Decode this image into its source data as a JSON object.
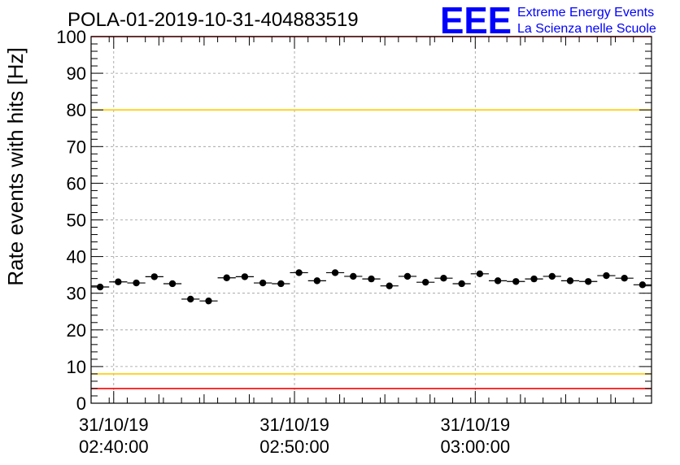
{
  "chart_data": {
    "type": "scatter",
    "title": "POLA-01-2019-10-31-404883519",
    "ylabel": "Rate events with hits [Hz]",
    "xlabel": "",
    "ylim": [
      0,
      100
    ],
    "y_ticks": [
      "0",
      "10",
      "20",
      "30",
      "40",
      "50",
      "60",
      "70",
      "80",
      "90",
      "100"
    ],
    "x_ticks": [
      {
        "minute": 1.25,
        "date": "31/10/19",
        "time": "02:40:00"
      },
      {
        "minute": 11.25,
        "date": "31/10/19",
        "time": "02:50:00"
      },
      {
        "minute": 21.25,
        "date": "31/10/19",
        "time": "03:00:00"
      }
    ],
    "x_range_minutes": [
      0,
      31
    ],
    "grid": true,
    "reference_lines": [
      {
        "y": 100,
        "color": "#ff0000"
      },
      {
        "y": 80,
        "color": "#ffcc00"
      },
      {
        "y": 8,
        "color": "#ffcc00"
      },
      {
        "y": 4,
        "color": "#ff0000"
      }
    ],
    "point_color": "#000000",
    "values": [
      31.7,
      33.1,
      32.8,
      34.5,
      32.6,
      28.4,
      27.9,
      34.2,
      34.5,
      32.8,
      32.6,
      35.6,
      33.4,
      35.6,
      34.6,
      33.9,
      32.0,
      34.6,
      33.0,
      34.1,
      32.6,
      35.3,
      33.4,
      33.2,
      33.9,
      34.6,
      33.4,
      33.2,
      34.8,
      34.1,
      32.3
    ]
  },
  "logo": {
    "mark": "EEE",
    "line1": "Extreme Energy Events",
    "line2": "La Scienza nelle Scuole",
    "color": "#0000ff"
  }
}
